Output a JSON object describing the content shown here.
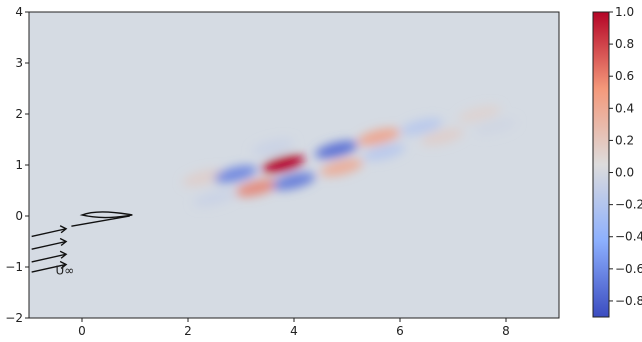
{
  "chart_data": {
    "type": "heatmap",
    "title": "",
    "xlabel": "",
    "ylabel": "",
    "xlim": [
      -1,
      9
    ],
    "ylim": [
      -2,
      4
    ],
    "x_ticks": [
      {
        "value": 0,
        "label": "0"
      },
      {
        "value": 2,
        "label": "2"
      },
      {
        "value": 4,
        "label": "4"
      },
      {
        "value": 6,
        "label": "6"
      },
      {
        "value": 8,
        "label": "8"
      }
    ],
    "y_ticks": [
      {
        "value": -2,
        "label": "−2"
      },
      {
        "value": -1,
        "label": "−1"
      },
      {
        "value": 0,
        "label": "0"
      },
      {
        "value": 1,
        "label": "1"
      },
      {
        "value": 2,
        "label": "2"
      },
      {
        "value": 3,
        "label": "3"
      },
      {
        "value": 4,
        "label": "4"
      }
    ],
    "colormap": "coolwarm",
    "colorbar": {
      "range": [
        -0.9,
        1.0
      ],
      "ticks": [
        {
          "value": 1.0,
          "label": "1.0"
        },
        {
          "value": 0.8,
          "label": "0.8"
        },
        {
          "value": 0.6,
          "label": "0.6"
        },
        {
          "value": 0.4,
          "label": "0.4"
        },
        {
          "value": 0.2,
          "label": "0.2"
        },
        {
          "value": 0.0,
          "label": "0.0"
        },
        {
          "value": -0.2,
          "label": "−0.2"
        },
        {
          "value": -0.4,
          "label": "−0.4"
        },
        {
          "value": -0.6,
          "label": "−0.6"
        },
        {
          "value": -0.8,
          "label": "−0.8"
        }
      ]
    },
    "structures": [
      {
        "x": 2.3,
        "y": 0.75,
        "value": 0.15
      },
      {
        "x": 2.9,
        "y": 0.82,
        "value": -0.75
      },
      {
        "x": 3.3,
        "y": 0.55,
        "value": 0.6
      },
      {
        "x": 3.8,
        "y": 1.02,
        "value": 1.0
      },
      {
        "x": 4.0,
        "y": 0.68,
        "value": -0.8
      },
      {
        "x": 4.8,
        "y": 1.3,
        "value": -0.85
      },
      {
        "x": 4.9,
        "y": 0.95,
        "value": 0.45
      },
      {
        "x": 5.6,
        "y": 1.55,
        "value": 0.5
      },
      {
        "x": 5.7,
        "y": 1.25,
        "value": -0.3
      },
      {
        "x": 6.4,
        "y": 1.75,
        "value": -0.3
      },
      {
        "x": 6.8,
        "y": 1.55,
        "value": 0.15
      },
      {
        "x": 7.5,
        "y": 2.0,
        "value": 0.1
      },
      {
        "x": 7.8,
        "y": 1.75,
        "value": -0.1
      },
      {
        "x": 2.5,
        "y": 0.35,
        "value": -0.15
      },
      {
        "x": 3.6,
        "y": 1.35,
        "value": -0.15
      }
    ],
    "annotation": {
      "text": "U∞",
      "x": -0.5,
      "y": -1.15
    }
  }
}
